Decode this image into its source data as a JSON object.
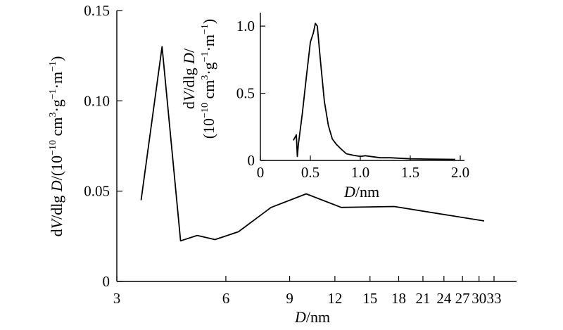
{
  "chart_data": [
    {
      "type": "line",
      "name": "main",
      "x_scale": "log",
      "xlim": [
        3,
        33
      ],
      "ylim": [
        0,
        0.15
      ],
      "x_ticks": [
        3,
        6,
        9,
        12,
        15,
        18,
        21,
        24,
        27,
        30,
        33
      ],
      "x_tick_labels": [
        "3",
        "6",
        "9",
        "12",
        "15",
        "18",
        "21",
        "24",
        "27",
        "30",
        "33"
      ],
      "y_ticks": [
        0,
        0.05,
        0.1,
        0.15
      ],
      "y_tick_labels": [
        "0",
        "0.05",
        "0.10",
        "0.15"
      ],
      "xlabel": {
        "var": "D",
        "unit": "/nm"
      },
      "ylabel": {
        "var1": "V",
        "mid": "/dlg ",
        "var2": "D",
        "unit": "/(10",
        "exp1": "−10",
        "unit2": " cm",
        "exp2": "3",
        "unit3": "·g",
        "exp3": "−1",
        "unit4": "·m",
        "exp4": "−1",
        "close": ")"
      },
      "x": [
        3.5,
        4.0,
        4.5,
        5.0,
        5.6,
        6.5,
        8.0,
        10.0,
        12.5,
        17.5,
        31.0
      ],
      "y": [
        0.045,
        0.13,
        0.0225,
        0.0255,
        0.0232,
        0.0275,
        0.041,
        0.0485,
        0.041,
        0.0415,
        0.0335
      ]
    },
    {
      "type": "line",
      "name": "inset",
      "xlim": [
        0,
        2.0
      ],
      "ylim": [
        0,
        1.1
      ],
      "x_ticks": [
        0,
        0.5,
        1.0,
        1.5,
        2.0
      ],
      "x_tick_labels": [
        "0",
        "0.5",
        "1.0",
        "1.5",
        "2.0"
      ],
      "y_ticks": [
        0,
        0.5,
        1.0
      ],
      "y_tick_labels": [
        "0",
        "0.5",
        "1.0"
      ],
      "xlabel": {
        "var": "D",
        "unit": "/nm"
      },
      "ylabel_line1": {
        "pre": "d",
        "var1": "V",
        "mid": "/dlg ",
        "var2": "D",
        "post": "/"
      },
      "ylabel_line2": {
        "open": "(10",
        "exp1": "−10",
        "unit2": " cm",
        "exp2": "3",
        "unit3": "·g",
        "exp3": "−1",
        "unit4": "·m",
        "exp4": "−1",
        "close": ")"
      },
      "x": [
        0.33,
        0.36,
        0.37,
        0.38,
        0.42,
        0.46,
        0.5,
        0.53,
        0.55,
        0.57,
        0.6,
        0.64,
        0.68,
        0.72,
        0.76,
        0.8,
        0.86,
        0.92,
        1.0,
        1.05,
        1.1,
        1.2,
        1.3,
        1.5,
        1.7,
        1.95
      ],
      "y": [
        0.15,
        0.19,
        0.03,
        0.12,
        0.35,
        0.62,
        0.88,
        0.95,
        1.02,
        1.0,
        0.75,
        0.44,
        0.26,
        0.16,
        0.12,
        0.09,
        0.05,
        0.04,
        0.03,
        0.035,
        0.03,
        0.02,
        0.02,
        0.012,
        0.01,
        0.008
      ]
    }
  ]
}
